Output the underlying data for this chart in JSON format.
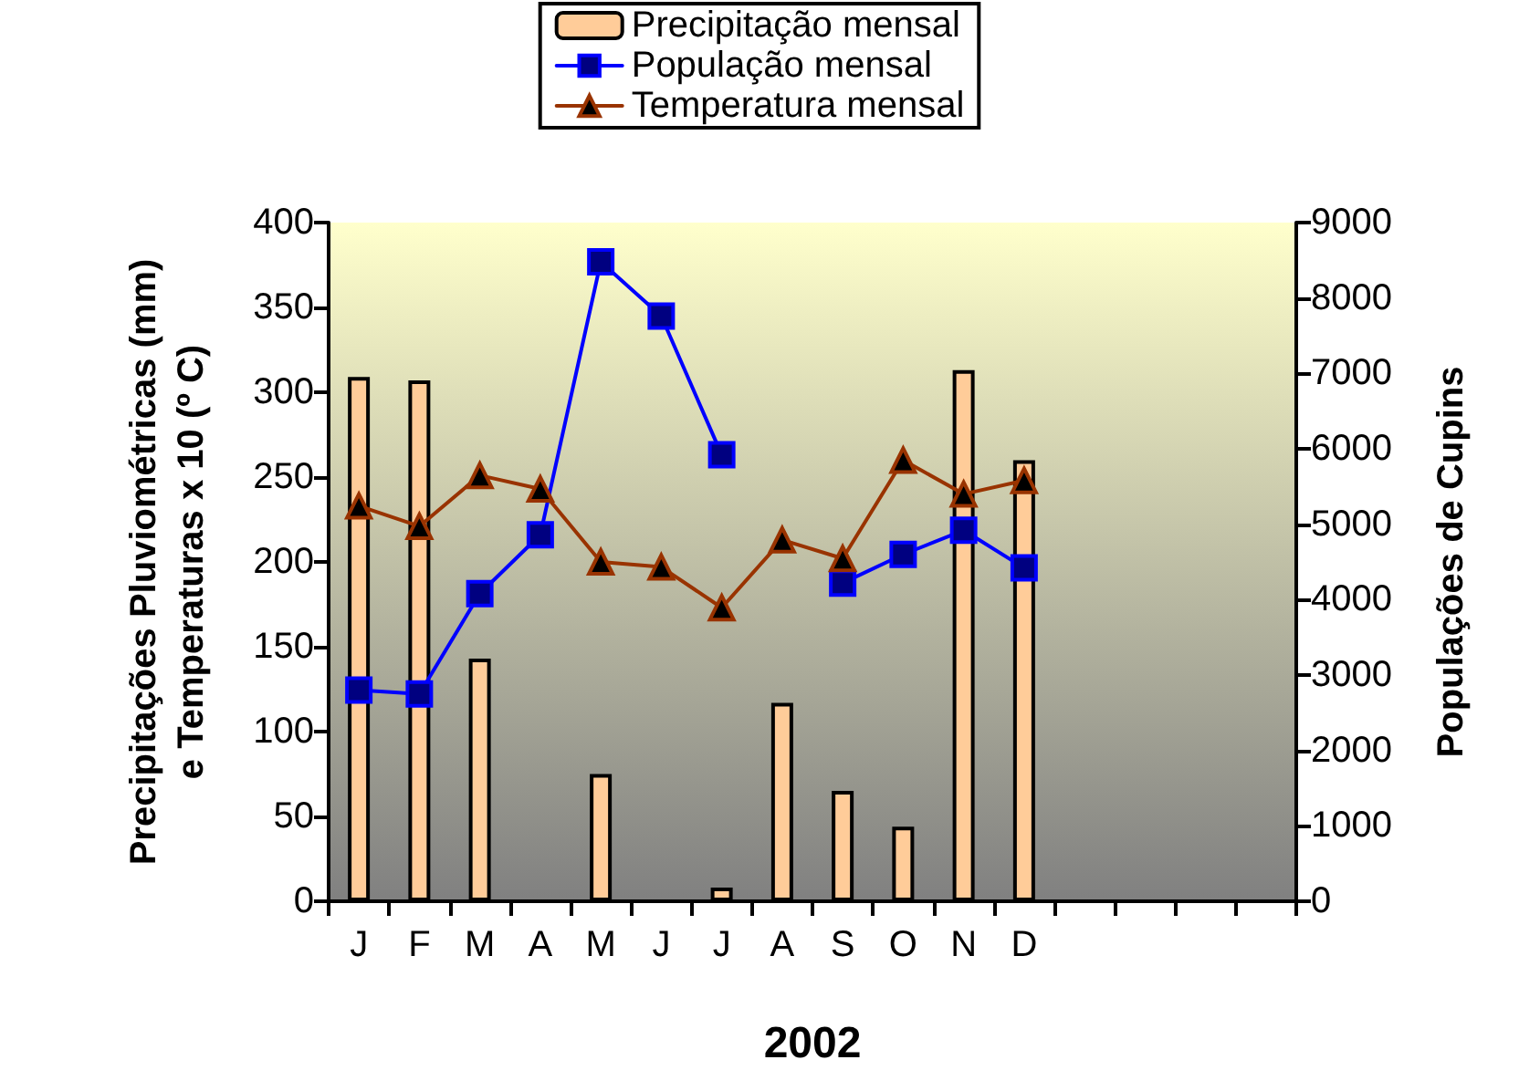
{
  "chart_data": {
    "type": "bar",
    "xlabel": "2002",
    "ylabel": "Precipitações Pluviométricas (mm)\ne Temperaturas x 10 (º C)",
    "y2label": "Populações de Cupins",
    "categories": [
      "J",
      "F",
      "M",
      "A",
      "M",
      "J",
      "J",
      "A",
      "S",
      "O",
      "N",
      "D",
      null,
      null,
      null,
      null
    ],
    "series": [
      {
        "name": "Precipitação mensal",
        "color": "#ffcc99",
        "values": [
          309,
          307,
          143,
          null,
          75,
          null,
          8,
          117,
          65,
          44,
          313,
          260,
          null,
          null,
          null,
          null
        ]
      },
      {
        "name": "População mensal",
        "type": "line",
        "axis": "y2",
        "marker": "square",
        "color": "#0000ff",
        "values": [
          2800,
          2750,
          4080,
          4860,
          8480,
          7760,
          5920,
          null,
          4220,
          4600,
          4920,
          4420,
          null,
          null,
          null,
          null
        ]
      },
      {
        "name": "Temperatura mensal",
        "type": "line",
        "marker": "triangle",
        "color": "#993300",
        "values": [
          233,
          221,
          251,
          243,
          200,
          197,
          173,
          213,
          202,
          260,
          240,
          248,
          null,
          null,
          null,
          null
        ]
      }
    ],
    "ylim": [
      0,
      400
    ],
    "yticks": [
      0,
      50,
      100,
      150,
      200,
      250,
      300,
      350,
      400
    ],
    "y2lim": [
      0,
      9000
    ],
    "y2ticks": [
      0,
      1000,
      2000,
      3000,
      4000,
      5000,
      6000,
      7000,
      8000,
      9000
    ],
    "grid": false,
    "legend": "top"
  }
}
